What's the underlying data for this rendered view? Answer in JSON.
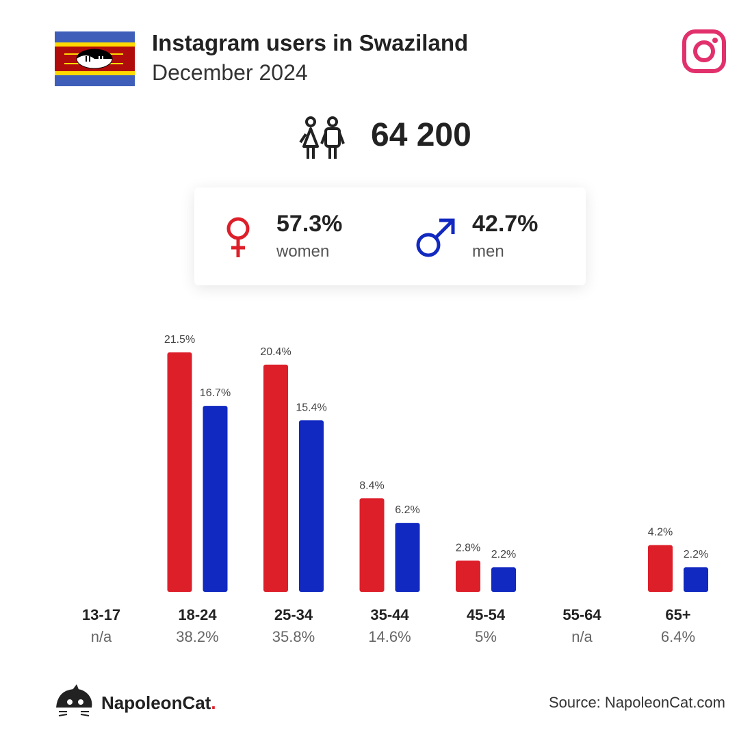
{
  "header": {
    "title": "Instagram users in Swaziland",
    "subtitle": "December 2024"
  },
  "total": {
    "value": "64 200"
  },
  "gender": {
    "women": {
      "pct": "57.3%",
      "label": "women",
      "color": "#dd1f2a"
    },
    "men": {
      "pct": "42.7%",
      "label": "men",
      "color": "#1129c0"
    }
  },
  "chart_data": {
    "type": "bar",
    "categories": [
      "13-17",
      "18-24",
      "25-34",
      "35-44",
      "45-54",
      "55-64",
      "65+"
    ],
    "group_totals": [
      "n/a",
      "38.2%",
      "35.8%",
      "14.6%",
      "5%",
      "n/a",
      "6.4%"
    ],
    "series": [
      {
        "color": "#dd1f2a",
        "values": [
          null,
          21.5,
          20.4,
          8.4,
          2.8,
          null,
          4.2
        ],
        "labels": [
          "",
          "21.5%",
          "20.4%",
          "8.4%",
          "2.8%",
          "",
          "4.2%"
        ]
      },
      {
        "color": "#1129c0",
        "values": [
          null,
          16.7,
          15.4,
          6.2,
          2.2,
          null,
          2.2
        ],
        "labels": [
          "",
          "16.7%",
          "15.4%",
          "6.2%",
          "2.2%",
          "",
          "2.2%"
        ]
      }
    ]
  },
  "footer": {
    "brand": "NapoleonCat",
    "brand_dot": ".",
    "source": "Source: NapoleonCat.com"
  },
  "colors": {
    "instagram": "#e1306c",
    "text": "#222222"
  },
  "icons": [
    "swaziland-flag-icon",
    "instagram-icon",
    "people-icon",
    "female-icon",
    "male-icon",
    "napoleoncat-logo-icon"
  ]
}
